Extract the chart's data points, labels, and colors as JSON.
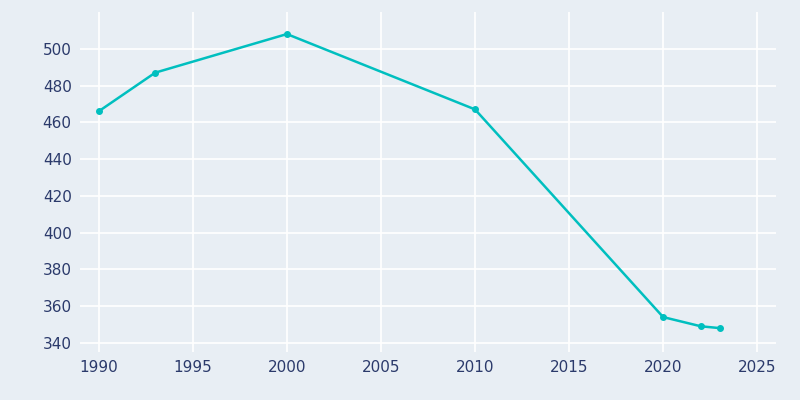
{
  "years": [
    1990,
    1993,
    2000,
    2010,
    2020,
    2022,
    2023
  ],
  "population": [
    466,
    487,
    508,
    467,
    354,
    349,
    348
  ],
  "line_color": "#00BFBF",
  "bg_color": "#E8EEF4",
  "plot_bg_color": "#E8EEF4",
  "grid_color": "#FFFFFF",
  "tick_label_color": "#2B3A6B",
  "xlim": [
    1989,
    2026
  ],
  "ylim": [
    335,
    520
  ],
  "yticks": [
    340,
    360,
    380,
    400,
    420,
    440,
    460,
    480,
    500
  ],
  "xticks": [
    1990,
    1995,
    2000,
    2005,
    2010,
    2015,
    2020,
    2025
  ],
  "line_width": 1.8,
  "marker": "o",
  "marker_size": 4
}
